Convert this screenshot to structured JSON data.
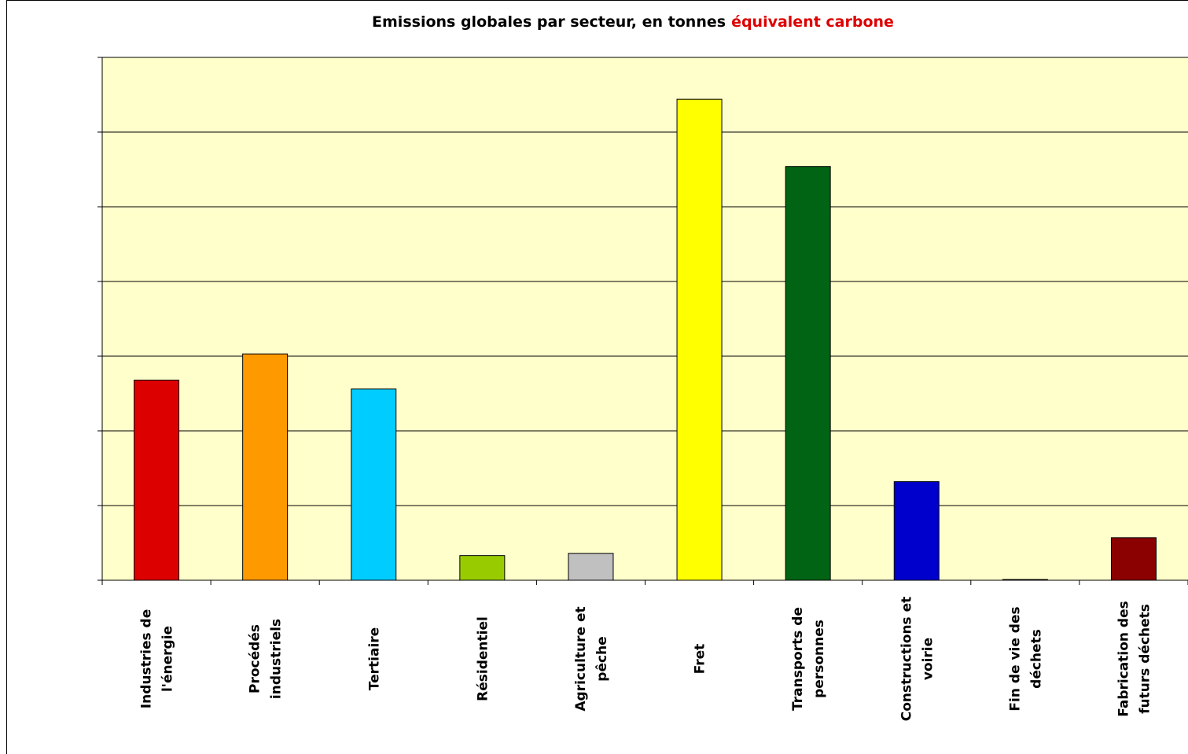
{
  "chart_data": {
    "type": "bar",
    "title": [
      "Emissions globales par secteur, en tonnes",
      "équivalent carbone"
    ],
    "title_colors": [
      "#000000",
      "#dd0000"
    ],
    "categories": [
      [
        "Industries de",
        "l'énergie"
      ],
      [
        "Procédés",
        "industriels"
      ],
      [
        "Tertiaire"
      ],
      [
        "Résidentiel"
      ],
      [
        "Agriculture et",
        "pêche"
      ],
      [
        "Fret"
      ],
      [
        "Transports de",
        "personnes"
      ],
      [
        "Constructions et",
        "voirie"
      ],
      [
        "Fin de vie des",
        "déchets"
      ],
      [
        "Fabrication des",
        "futurs déchets"
      ]
    ],
    "values": [
      2.68,
      3.03,
      2.56,
      0.33,
      0.36,
      6.44,
      5.54,
      1.32,
      0.01,
      0.57
    ],
    "colors": [
      "#dd0000",
      "#ff9900",
      "#00ccff",
      "#99cc00",
      "#c0c0c0",
      "#ffff00",
      "#006414",
      "#0000cc",
      "#333333",
      "#8b0000"
    ],
    "ylim": [
      0,
      7
    ],
    "yticks": [
      0,
      1,
      2,
      3,
      4,
      5,
      6,
      7
    ],
    "grid": true
  }
}
